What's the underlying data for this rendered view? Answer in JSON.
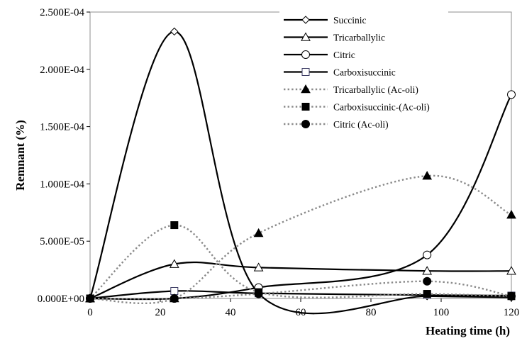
{
  "chart_data": {
    "type": "line",
    "title": "",
    "xlabel": "Heating time (h)",
    "ylabel": "Remnant (%)",
    "xlim": [
      0,
      120
    ],
    "ylim": [
      0,
      0.00025
    ],
    "x_ticks": [
      0,
      20,
      40,
      60,
      80,
      100,
      120
    ],
    "x_tick_labels": [
      "0",
      "20",
      "40",
      "60",
      "80",
      "100",
      "120"
    ],
    "y_ticks": [
      0,
      5e-05,
      0.0001,
      0.00015,
      0.0002,
      0.00025
    ],
    "y_tick_labels": [
      "0.000E+00",
      "5.000E-05",
      "1.000E-04",
      "1.500E-04",
      "2.000E-04",
      "2.500E-04"
    ],
    "grid": false,
    "legend_position": "top-right",
    "series": [
      {
        "name": "Succinic",
        "marker": "diamond-open",
        "line": "solid",
        "color": "#000000",
        "x": [
          0,
          24,
          48,
          96,
          120
        ],
        "y": [
          0,
          0.000233,
          4.5e-06,
          2e-06,
          1e-06
        ]
      },
      {
        "name": "Tricarballylic",
        "marker": "triangle-open",
        "line": "solid",
        "color": "#000000",
        "x": [
          0,
          24,
          48,
          96,
          120
        ],
        "y": [
          0,
          3e-05,
          2.7e-05,
          2.4e-05,
          2.4e-05
        ]
      },
      {
        "name": "Citric",
        "marker": "circle-open",
        "line": "solid",
        "color": "#000000",
        "x": [
          0,
          24,
          48,
          96,
          120
        ],
        "y": [
          0,
          0,
          9.5e-06,
          3.8e-05,
          0.000178
        ]
      },
      {
        "name": "Carboxisuccinic",
        "marker": "square-open",
        "line": "solid",
        "color": "#000000",
        "x": [
          0,
          24,
          48,
          96,
          120
        ],
        "y": [
          0,
          6.5e-06,
          4.5e-06,
          3e-06,
          2.5e-06
        ]
      },
      {
        "name": "Tricarballylic (Ac-oli)",
        "marker": "triangle-filled",
        "line": "dotted",
        "color": "#888888",
        "x": [
          0,
          24,
          48,
          96,
          120
        ],
        "y": [
          0,
          0,
          5.7e-05,
          0.000107,
          7.3e-05
        ]
      },
      {
        "name": "Carboxisuccinic-(Ac-oli)",
        "marker": "square-filled",
        "line": "dotted",
        "color": "#888888",
        "x": [
          0,
          24,
          48,
          96,
          120
        ],
        "y": [
          0,
          6.4e-05,
          5.5e-06,
          4e-06,
          2e-06
        ]
      },
      {
        "name": "Citric (Ac-oli)",
        "marker": "circle-filled",
        "line": "dotted",
        "color": "#888888",
        "x": [
          0,
          24,
          48,
          96,
          120
        ],
        "y": [
          0,
          0,
          4e-06,
          1.5e-05,
          2e-06
        ]
      }
    ]
  }
}
